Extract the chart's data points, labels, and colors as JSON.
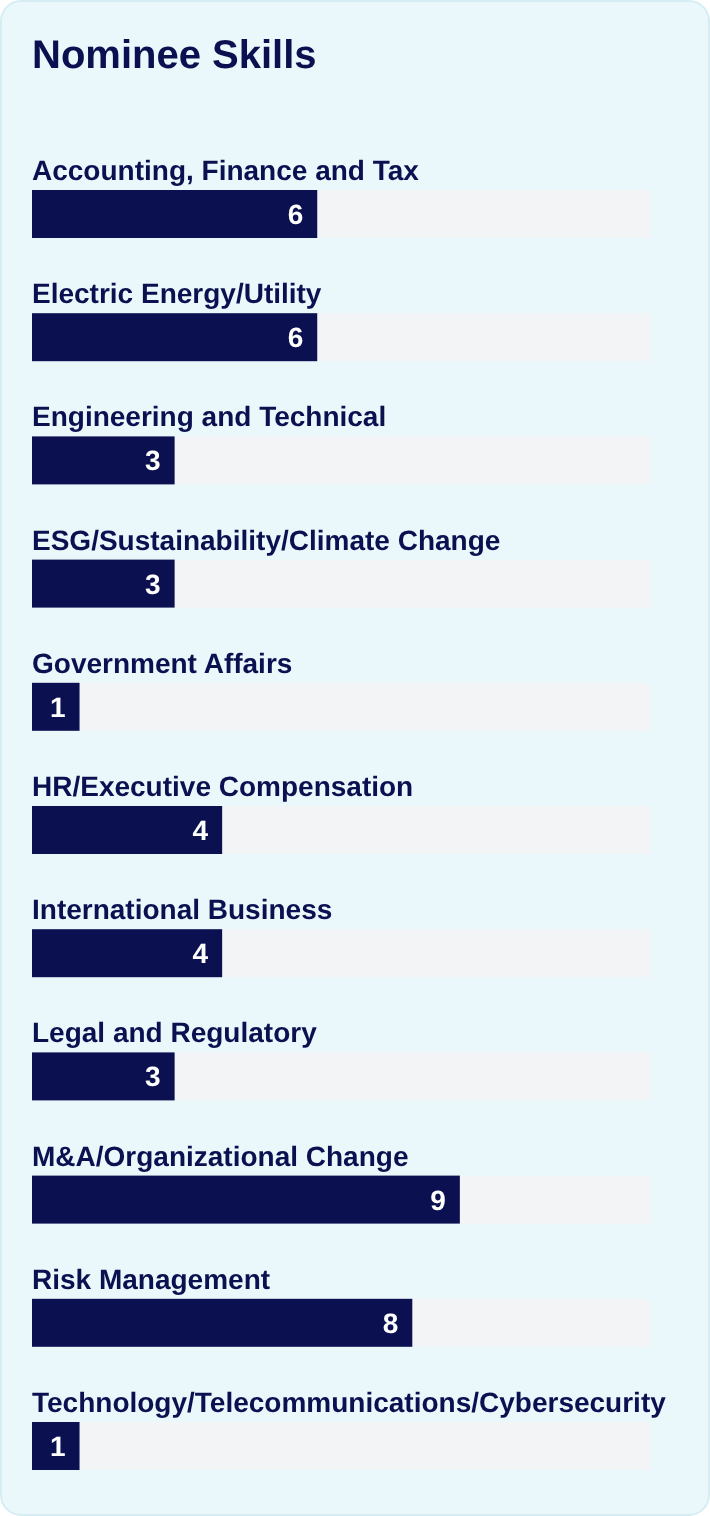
{
  "chart_data": {
    "type": "bar",
    "orientation": "horizontal",
    "title": "Nominee Skills",
    "categories": [
      "Accounting, Finance and Tax",
      "Electric Energy/Utility",
      "Engineering and Technical",
      "ESG/Sustainability/Climate Change",
      "Government Affairs",
      "HR/Executive Compensation",
      "International Business",
      "Legal and Regulatory",
      "M&A/Organizational Change",
      "Risk Management",
      "Technology/Telecommunications/Cybersecurity"
    ],
    "values": [
      6,
      6,
      3,
      3,
      1,
      4,
      4,
      3,
      9,
      8,
      1
    ],
    "color": "#0b1150",
    "xlim": [
      0,
      13
    ],
    "data_labels": true
  }
}
